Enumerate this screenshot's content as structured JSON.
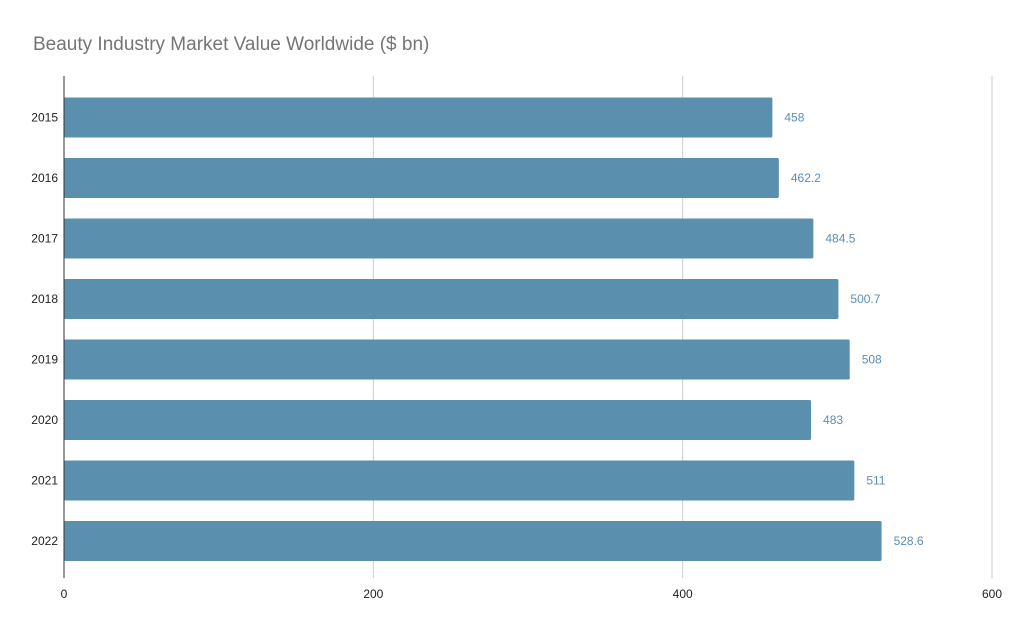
{
  "chart_data": {
    "type": "bar",
    "orientation": "horizontal",
    "title": "Beauty Industry Market Value Worldwide ($ bn)",
    "categories": [
      "2015",
      "2016",
      "2017",
      "2018",
      "2019",
      "2020",
      "2021",
      "2022"
    ],
    "values": [
      458,
      462.2,
      484.5,
      500.7,
      508,
      483,
      511,
      528.6
    ],
    "data_labels": [
      "458",
      "462.2",
      "484.5",
      "500.7",
      "508",
      "483",
      "511",
      "528.6"
    ],
    "x_ticks": [
      "0",
      "200",
      "400",
      "600"
    ],
    "xlim": [
      0,
      600
    ],
    "xlabel": "",
    "ylabel": "",
    "grid": true,
    "legend": "none",
    "colors": {
      "bar": "#5a8fae",
      "data_label": "#5b8db8",
      "grid": "#cccccc",
      "axis": "#333333",
      "title": "#757575"
    }
  }
}
